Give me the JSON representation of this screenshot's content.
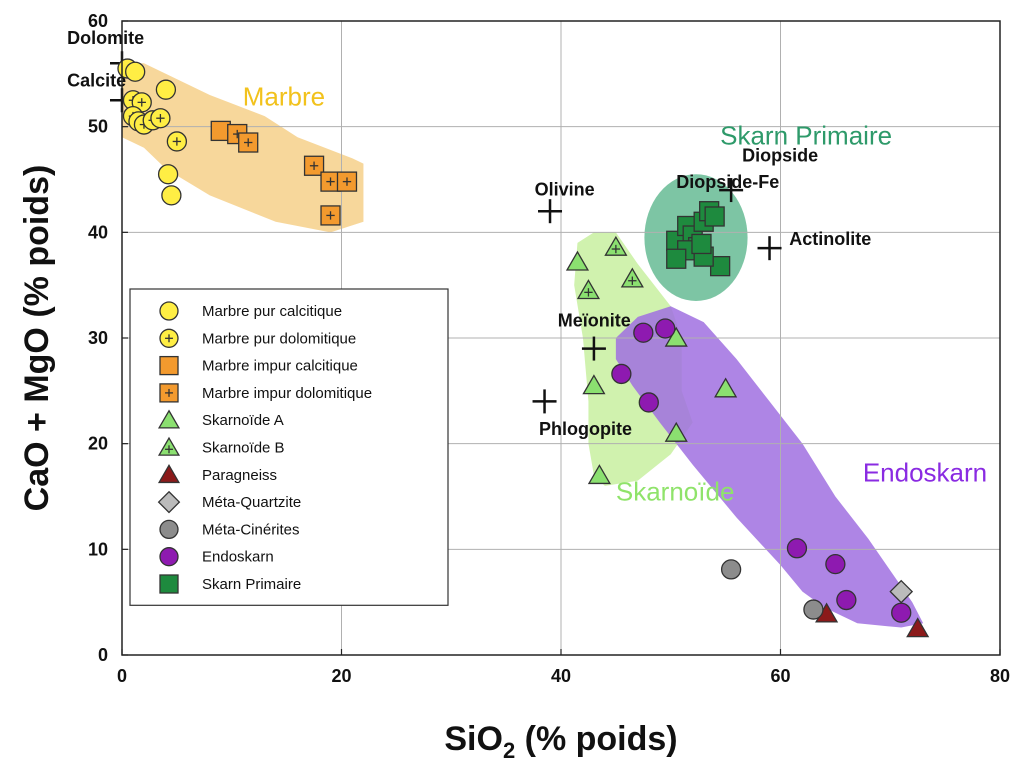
{
  "chart_data": {
    "type": "scatter",
    "xlabel": "SiO",
    "xlabel_subscript": "2",
    "xlabel_suffix": " (% poids)",
    "ylabel": "CaO + MgO (% poids)",
    "xlim": [
      0,
      80
    ],
    "ylim": [
      0,
      60
    ],
    "xticks": [
      "0",
      "20",
      "40",
      "60",
      "80"
    ],
    "yticks": [
      "0",
      "10",
      "20",
      "30",
      "40",
      "50",
      "60"
    ],
    "grid": true,
    "legend_position": "bottom-left",
    "fields": [
      {
        "name": "Marbre",
        "color": "#f6d08a",
        "label_color": "#f2c21c",
        "polygon": [
          [
            0,
            56
          ],
          [
            2,
            56
          ],
          [
            8,
            53
          ],
          [
            13,
            51
          ],
          [
            16,
            49
          ],
          [
            21,
            47
          ],
          [
            22,
            46.5
          ],
          [
            22,
            41
          ],
          [
            19,
            40
          ],
          [
            14,
            41
          ],
          [
            8,
            43.5
          ],
          [
            4,
            46
          ],
          [
            2,
            48
          ],
          [
            0,
            49
          ]
        ],
        "label_at": [
          11,
          52
        ]
      },
      {
        "name": "Skarnoïde",
        "color": "#c8f0a0",
        "label_color": "#8fe36a",
        "polygon": [
          [
            41.5,
            39
          ],
          [
            43,
            40
          ],
          [
            45,
            40
          ],
          [
            47,
            37
          ],
          [
            50,
            33
          ],
          [
            51,
            30
          ],
          [
            51,
            25
          ],
          [
            52,
            22
          ],
          [
            50,
            19
          ],
          [
            47,
            16.5
          ],
          [
            44,
            16
          ],
          [
            43,
            17
          ],
          [
            42.5,
            20
          ],
          [
            42.5,
            24
          ],
          [
            42,
            30
          ],
          [
            41.2,
            35
          ]
        ],
        "label_at": [
          45,
          14.6
        ]
      },
      {
        "name": "Endoskarn",
        "color": "#a070e0",
        "label_color": "#8a2be2",
        "polygon": [
          [
            45,
            30
          ],
          [
            47,
            32
          ],
          [
            50,
            33
          ],
          [
            53,
            31.5
          ],
          [
            56,
            28
          ],
          [
            59,
            24
          ],
          [
            62,
            20
          ],
          [
            65,
            15
          ],
          [
            68,
            11
          ],
          [
            70,
            8
          ],
          [
            72,
            5
          ],
          [
            73,
            3
          ],
          [
            71,
            2.6
          ],
          [
            67,
            3
          ],
          [
            64,
            4.5
          ],
          [
            62,
            6
          ],
          [
            60,
            8.5
          ],
          [
            56,
            13
          ],
          [
            52,
            18
          ],
          [
            49,
            22
          ],
          [
            46.5,
            25.5
          ],
          [
            45,
            28
          ]
        ],
        "label_at": [
          67.5,
          16.4
        ]
      },
      {
        "name": "Skarn Primaire",
        "color": "#6fbf9a",
        "label_color": "#2e9a6a",
        "circle": {
          "cx": 52.3,
          "cy": 39.5,
          "rx": 4.7,
          "ry": 6.0
        },
        "label_at": [
          54.5,
          48.3
        ]
      }
    ],
    "minerals": [
      {
        "name": "Dolomite",
        "x": 0,
        "y": 56,
        "label_at": [
          -5,
          57.8
        ]
      },
      {
        "name": "Calcite",
        "x": 0,
        "y": 52.5,
        "label_at": [
          -5,
          53.8
        ]
      },
      {
        "name": "Olivine",
        "x": 39,
        "y": 42,
        "label_at": [
          37.6,
          43.5
        ]
      },
      {
        "name": "Diopside-Fe",
        "x": 55.5,
        "y": 44,
        "label_at": [
          50.5,
          44.2
        ]
      },
      {
        "name": "Diopside",
        "x": 55.5,
        "y": 44,
        "label_at": [
          56.5,
          46.7
        ]
      },
      {
        "name": "Actinolite",
        "x": 59,
        "y": 38.5,
        "label_at": [
          60.8,
          38.8
        ]
      },
      {
        "name": "Meïonite",
        "x": 43,
        "y": 29,
        "label_at": [
          39.7,
          31.1
        ]
      },
      {
        "name": "Phlogopite",
        "x": 38.5,
        "y": 24,
        "label_at": [
          38,
          20.8
        ]
      }
    ],
    "series": [
      {
        "name": "Marbre pur calcitique",
        "marker": "circle",
        "color": "#ffee44",
        "plus": false,
        "points": [
          [
            0.5,
            55.5
          ],
          [
            1.2,
            55.2
          ],
          [
            4,
            53.5
          ],
          [
            4.2,
            45.5
          ],
          [
            4.5,
            43.5
          ]
        ]
      },
      {
        "name": "Marbre pur dolomitique",
        "marker": "circle",
        "color": "#ffee44",
        "plus": true,
        "points": [
          [
            1,
            52.5
          ],
          [
            1.8,
            52.3
          ],
          [
            1,
            51
          ],
          [
            1.5,
            50.5
          ],
          [
            2,
            50.2
          ],
          [
            2.8,
            50.6
          ],
          [
            3.5,
            50.8
          ],
          [
            5,
            48.6
          ]
        ]
      },
      {
        "name": "Marbre impur calcitique",
        "marker": "square",
        "color": "#f39a2e",
        "plus": false,
        "points": [
          [
            9,
            49.6
          ]
        ]
      },
      {
        "name": "Marbre impur dolomitique",
        "marker": "square",
        "color": "#f39a2e",
        "plus": true,
        "points": [
          [
            10.5,
            49.3
          ],
          [
            11.5,
            48.5
          ],
          [
            17.5,
            46.3
          ],
          [
            19,
            44.8
          ],
          [
            20.5,
            44.8
          ],
          [
            19,
            41.6
          ]
        ]
      },
      {
        "name": "Skarnoïde A",
        "marker": "triangle",
        "color": "#8be070",
        "plus": false,
        "points": [
          [
            41.5,
            37.2
          ],
          [
            43,
            25.5
          ],
          [
            43.5,
            17
          ],
          [
            50.5,
            30
          ],
          [
            55,
            25.2
          ],
          [
            50.5,
            21
          ]
        ]
      },
      {
        "name": "Skarnoïde B",
        "marker": "triangle",
        "color": "#8be070",
        "plus": true,
        "points": [
          [
            45,
            38.6
          ],
          [
            42.5,
            34.5
          ],
          [
            46.5,
            35.6
          ]
        ]
      },
      {
        "name": "Paragneiss",
        "marker": "triangle",
        "color": "#8b1a1a",
        "plus": false,
        "points": [
          [
            64.2,
            3.9
          ],
          [
            72.5,
            2.5
          ]
        ]
      },
      {
        "name": "Méta-Quartzite",
        "marker": "diamond",
        "color": "#bbbbbb",
        "plus": false,
        "points": [
          [
            71,
            6
          ]
        ]
      },
      {
        "name": "Méta-Cinérites",
        "marker": "circle",
        "color": "#8c8c8c",
        "plus": false,
        "points": [
          [
            55.5,
            8.1
          ],
          [
            63,
            4.3
          ]
        ]
      },
      {
        "name": "Endoskarn",
        "marker": "circle",
        "color": "#8e1ab0",
        "plus": false,
        "points": [
          [
            47.5,
            30.5
          ],
          [
            49.5,
            30.9
          ],
          [
            45.5,
            26.6
          ],
          [
            48,
            23.9
          ],
          [
            61.5,
            10.1
          ],
          [
            65,
            8.6
          ],
          [
            66,
            5.2
          ],
          [
            71,
            4
          ]
        ]
      },
      {
        "name": "Skarn Primaire",
        "marker": "square",
        "color": "#1e8a3e",
        "plus": false,
        "points": [
          [
            50.5,
            39.2
          ],
          [
            51.5,
            40.6
          ],
          [
            52,
            39.7
          ],
          [
            53,
            41
          ],
          [
            53.5,
            42
          ],
          [
            54,
            41.5
          ],
          [
            52.5,
            38.6
          ],
          [
            51.5,
            38.3
          ],
          [
            54.5,
            36.8
          ],
          [
            50.5,
            37.5
          ],
          [
            53,
            37.7
          ],
          [
            52.8,
            38.9
          ]
        ]
      }
    ]
  }
}
